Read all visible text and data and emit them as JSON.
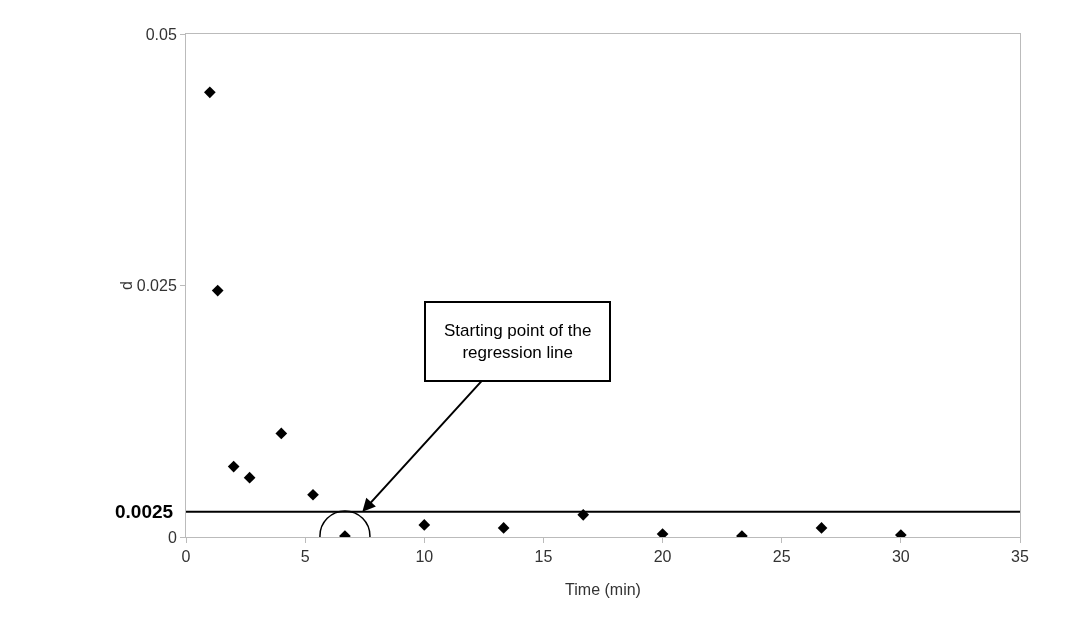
{
  "chart_data": {
    "type": "scatter",
    "xlabel": "Time (min)",
    "ylabel": "d",
    "x": [
      1,
      1.33,
      2,
      2.67,
      4,
      5.33,
      6.67,
      10,
      13.33,
      16.67,
      20,
      23.33,
      26.67,
      30
    ],
    "series": [
      {
        "color": "#000000",
        "values": [
          0.0442,
          0.0245,
          0.007,
          0.0059,
          0.0103,
          0.0042,
          0.0001,
          0.0012,
          0.0009,
          0.0022,
          0.0003,
          0.0001,
          0.0009,
          0.0002
        ]
      }
    ],
    "marker": "diamond",
    "grid": false,
    "xlim": [
      0,
      35
    ],
    "xticks": [
      0,
      5,
      10,
      15,
      20,
      25,
      30,
      35
    ],
    "ylim": [
      0,
      0.05
    ],
    "yticks": [
      0,
      0.025,
      0.05
    ],
    "ref_lines": [
      {
        "axis": "y",
        "value": 0.0025,
        "label": "0.0025",
        "color": "#000000"
      }
    ],
    "annotations": [
      {
        "text": "Starting point of the regression line",
        "x": 7.4,
        "y": 0.0025
      }
    ]
  }
}
